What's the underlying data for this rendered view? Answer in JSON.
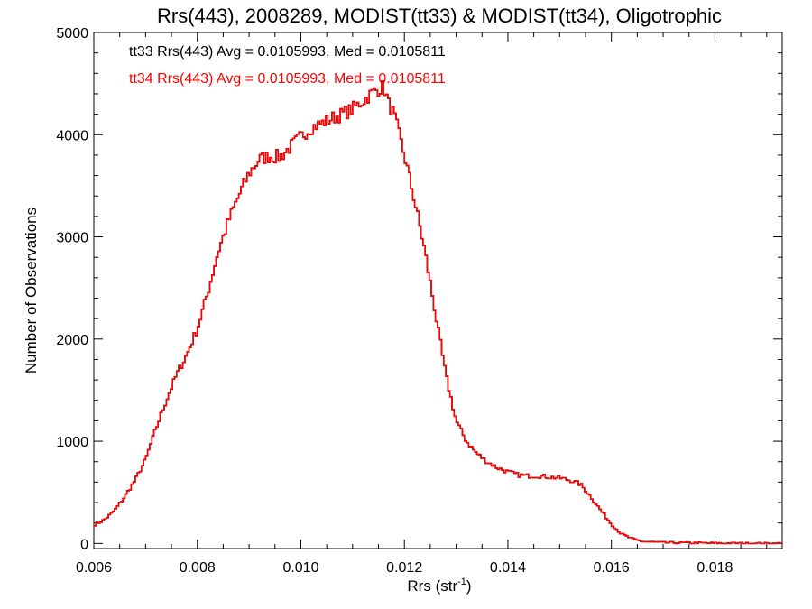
{
  "chart_data": {
    "type": "line",
    "title": "Rrs(443), 2008289, MODIST(tt33) & MODIST(tt34), Oligotrophic",
    "xlabel_main": "Rrs (str",
    "xlabel_sup": "-1",
    "xlabel_end": ")",
    "ylabel": "Number of Observations",
    "xlim": [
      0.006,
      0.0193
    ],
    "ylim": [
      -50,
      5000
    ],
    "xticks": [
      0.006,
      0.008,
      0.01,
      0.012,
      0.014,
      0.016,
      0.018
    ],
    "xtick_labels": [
      "0.006",
      "0.008",
      "0.010",
      "0.012",
      "0.014",
      "0.016",
      "0.018"
    ],
    "yticks": [
      0,
      1000,
      2000,
      3000,
      4000,
      5000
    ],
    "ytick_labels": [
      "0",
      "1000",
      "2000",
      "3000",
      "4000",
      "5000"
    ],
    "grid": false,
    "legend_position": "top-left",
    "anchors": [
      [
        0.006,
        180
      ],
      [
        0.0062,
        230
      ],
      [
        0.0064,
        320
      ],
      [
        0.0066,
        460
      ],
      [
        0.0068,
        620
      ],
      [
        0.007,
        820
      ],
      [
        0.0072,
        1120
      ],
      [
        0.0074,
        1400
      ],
      [
        0.0076,
        1650
      ],
      [
        0.0078,
        1850
      ],
      [
        0.008,
        2100
      ],
      [
        0.0082,
        2450
      ],
      [
        0.0084,
        2850
      ],
      [
        0.0086,
        3150
      ],
      [
        0.0088,
        3400
      ],
      [
        0.009,
        3620
      ],
      [
        0.0092,
        3760
      ],
      [
        0.0094,
        3790
      ],
      [
        0.0096,
        3780
      ],
      [
        0.0098,
        3880
      ],
      [
        0.01,
        3980
      ],
      [
        0.0102,
        4070
      ],
      [
        0.0104,
        4110
      ],
      [
        0.0106,
        4160
      ],
      [
        0.0108,
        4200
      ],
      [
        0.011,
        4250
      ],
      [
        0.0112,
        4330
      ],
      [
        0.0114,
        4420
      ],
      [
        0.0116,
        4470
      ],
      [
        0.0117,
        4300
      ],
      [
        0.0118,
        4200
      ],
      [
        0.012,
        3800
      ],
      [
        0.0122,
        3350
      ],
      [
        0.0124,
        2850
      ],
      [
        0.0126,
        2250
      ],
      [
        0.0128,
        1650
      ],
      [
        0.013,
        1200
      ],
      [
        0.0132,
        1000
      ],
      [
        0.0134,
        880
      ],
      [
        0.0136,
        800
      ],
      [
        0.0138,
        740
      ],
      [
        0.014,
        700
      ],
      [
        0.0142,
        670
      ],
      [
        0.0144,
        660
      ],
      [
        0.0146,
        660
      ],
      [
        0.0148,
        650
      ],
      [
        0.015,
        640
      ],
      [
        0.0152,
        620
      ],
      [
        0.0154,
        580
      ],
      [
        0.0156,
        460
      ],
      [
        0.0158,
        320
      ],
      [
        0.016,
        190
      ],
      [
        0.0162,
        90
      ],
      [
        0.0164,
        45
      ],
      [
        0.0166,
        20
      ],
      [
        0.017,
        8
      ],
      [
        0.018,
        2
      ],
      [
        0.0193,
        0
      ]
    ],
    "series": [
      {
        "text": "tt33 Rrs(443) Avg = 0.0105993, Med = 0.0105811",
        "color": "#000000"
      },
      {
        "text": "tt34 Rrs(443) Avg = 0.0105993, Med = 0.0105811",
        "color": "#ff0000"
      }
    ]
  }
}
